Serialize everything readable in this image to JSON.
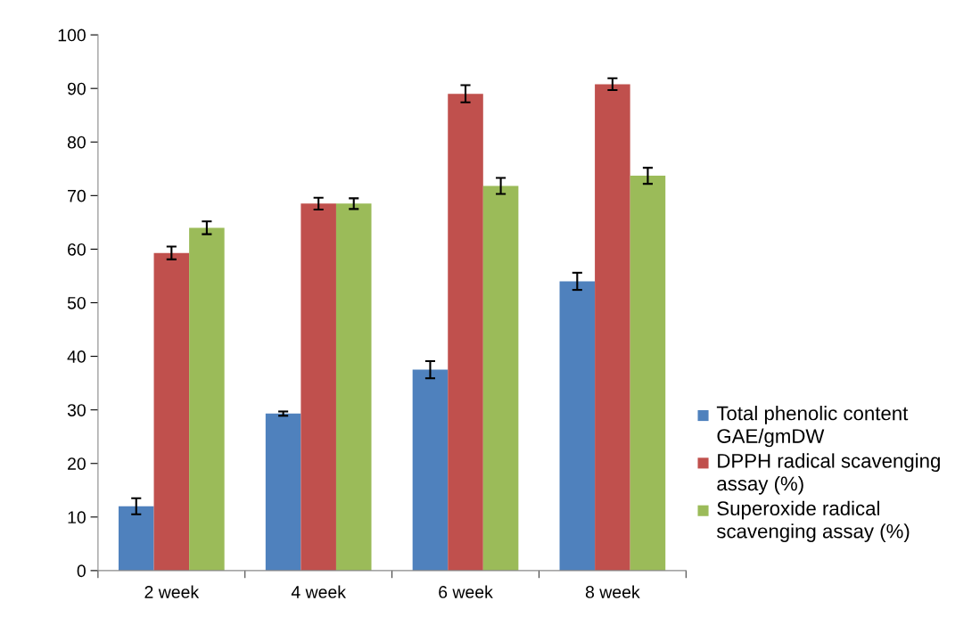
{
  "chart_data": {
    "type": "bar",
    "categories": [
      "2 week",
      "4 week",
      "6 week",
      "8 week"
    ],
    "series": [
      {
        "name": "Total phenolic content GAE/gmDW",
        "color": "#4f81bd",
        "values": [
          12,
          29.3,
          37.5,
          54
        ],
        "errors": [
          1.5,
          0.4,
          1.6,
          1.6
        ]
      },
      {
        "name": "DPPH radical scavenging assay (%)",
        "color": "#c0504d",
        "values": [
          59.3,
          68.5,
          89,
          90.8
        ],
        "errors": [
          1.2,
          1.1,
          1.6,
          1.1
        ]
      },
      {
        "name": "Superoxide radical scavenging assay (%)",
        "color": "#9bbb59",
        "values": [
          64,
          68.5,
          71.8,
          73.7
        ],
        "errors": [
          1.2,
          1.0,
          1.5,
          1.5
        ]
      }
    ],
    "ylim": [
      0,
      100
    ],
    "yticks": [
      0,
      10,
      20,
      30,
      40,
      50,
      60,
      70,
      80,
      90,
      100
    ],
    "grid": false,
    "legend": "right"
  }
}
